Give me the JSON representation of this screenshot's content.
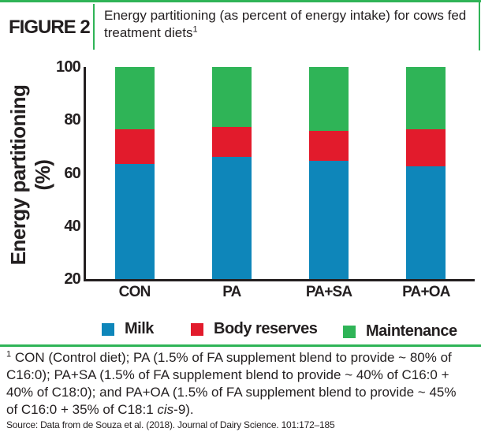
{
  "header": {
    "figure_label": "FIGURE 2",
    "title": "Energy partitioning (as percent of energy intake) for cows fed treatment diets",
    "title_superscript": "1"
  },
  "chart_data": {
    "type": "bar",
    "stacked": true,
    "categories": [
      "CON",
      "PA",
      "PA+SA",
      "PA+OA"
    ],
    "series": [
      {
        "name": "Milk",
        "color": "#0e86ba",
        "values": [
          63.5,
          66.0,
          64.5,
          62.5
        ]
      },
      {
        "name": "Body reserves",
        "color": "#e21b2c",
        "values": [
          13.0,
          11.5,
          11.5,
          14.0
        ]
      },
      {
        "name": "Maintenance",
        "color": "#2fb457",
        "values": [
          23.5,
          22.5,
          24.0,
          23.5
        ]
      }
    ],
    "title": "Energy partitioning (as percent of energy intake) for cows fed treatment diets",
    "xlabel": "",
    "ylabel": "Energy partitioning (%)",
    "ylim": [
      20,
      100
    ],
    "yticks": [
      20,
      40,
      60,
      80,
      100
    ],
    "grid": false,
    "legend_position": "bottom"
  },
  "footnote": {
    "marker": "1",
    "text_before_cis": " CON (Control diet); PA (1.5% of FA supplement blend to provide ~ 80% of C16:0); PA+SA (1.5% of FA supplement blend to provide ~ 40% of C16:0 + 40% of C18:0); and PA+OA (1.5% of FA supplement blend to provide ~ 45% of C16:0 + 35% of C18:1 ",
    "cis_italic": "cis",
    "text_after_cis": "-9)."
  },
  "source": "Source: Data from de Souza et al. (2018). Journal of Dairy Science. 101:172–185",
  "colors": {
    "accent_green": "#2fb457",
    "milk_blue": "#0e86ba",
    "body_reserves_red": "#e21b2c",
    "maintenance_green": "#2fb457",
    "axis_black": "#231f20"
  }
}
